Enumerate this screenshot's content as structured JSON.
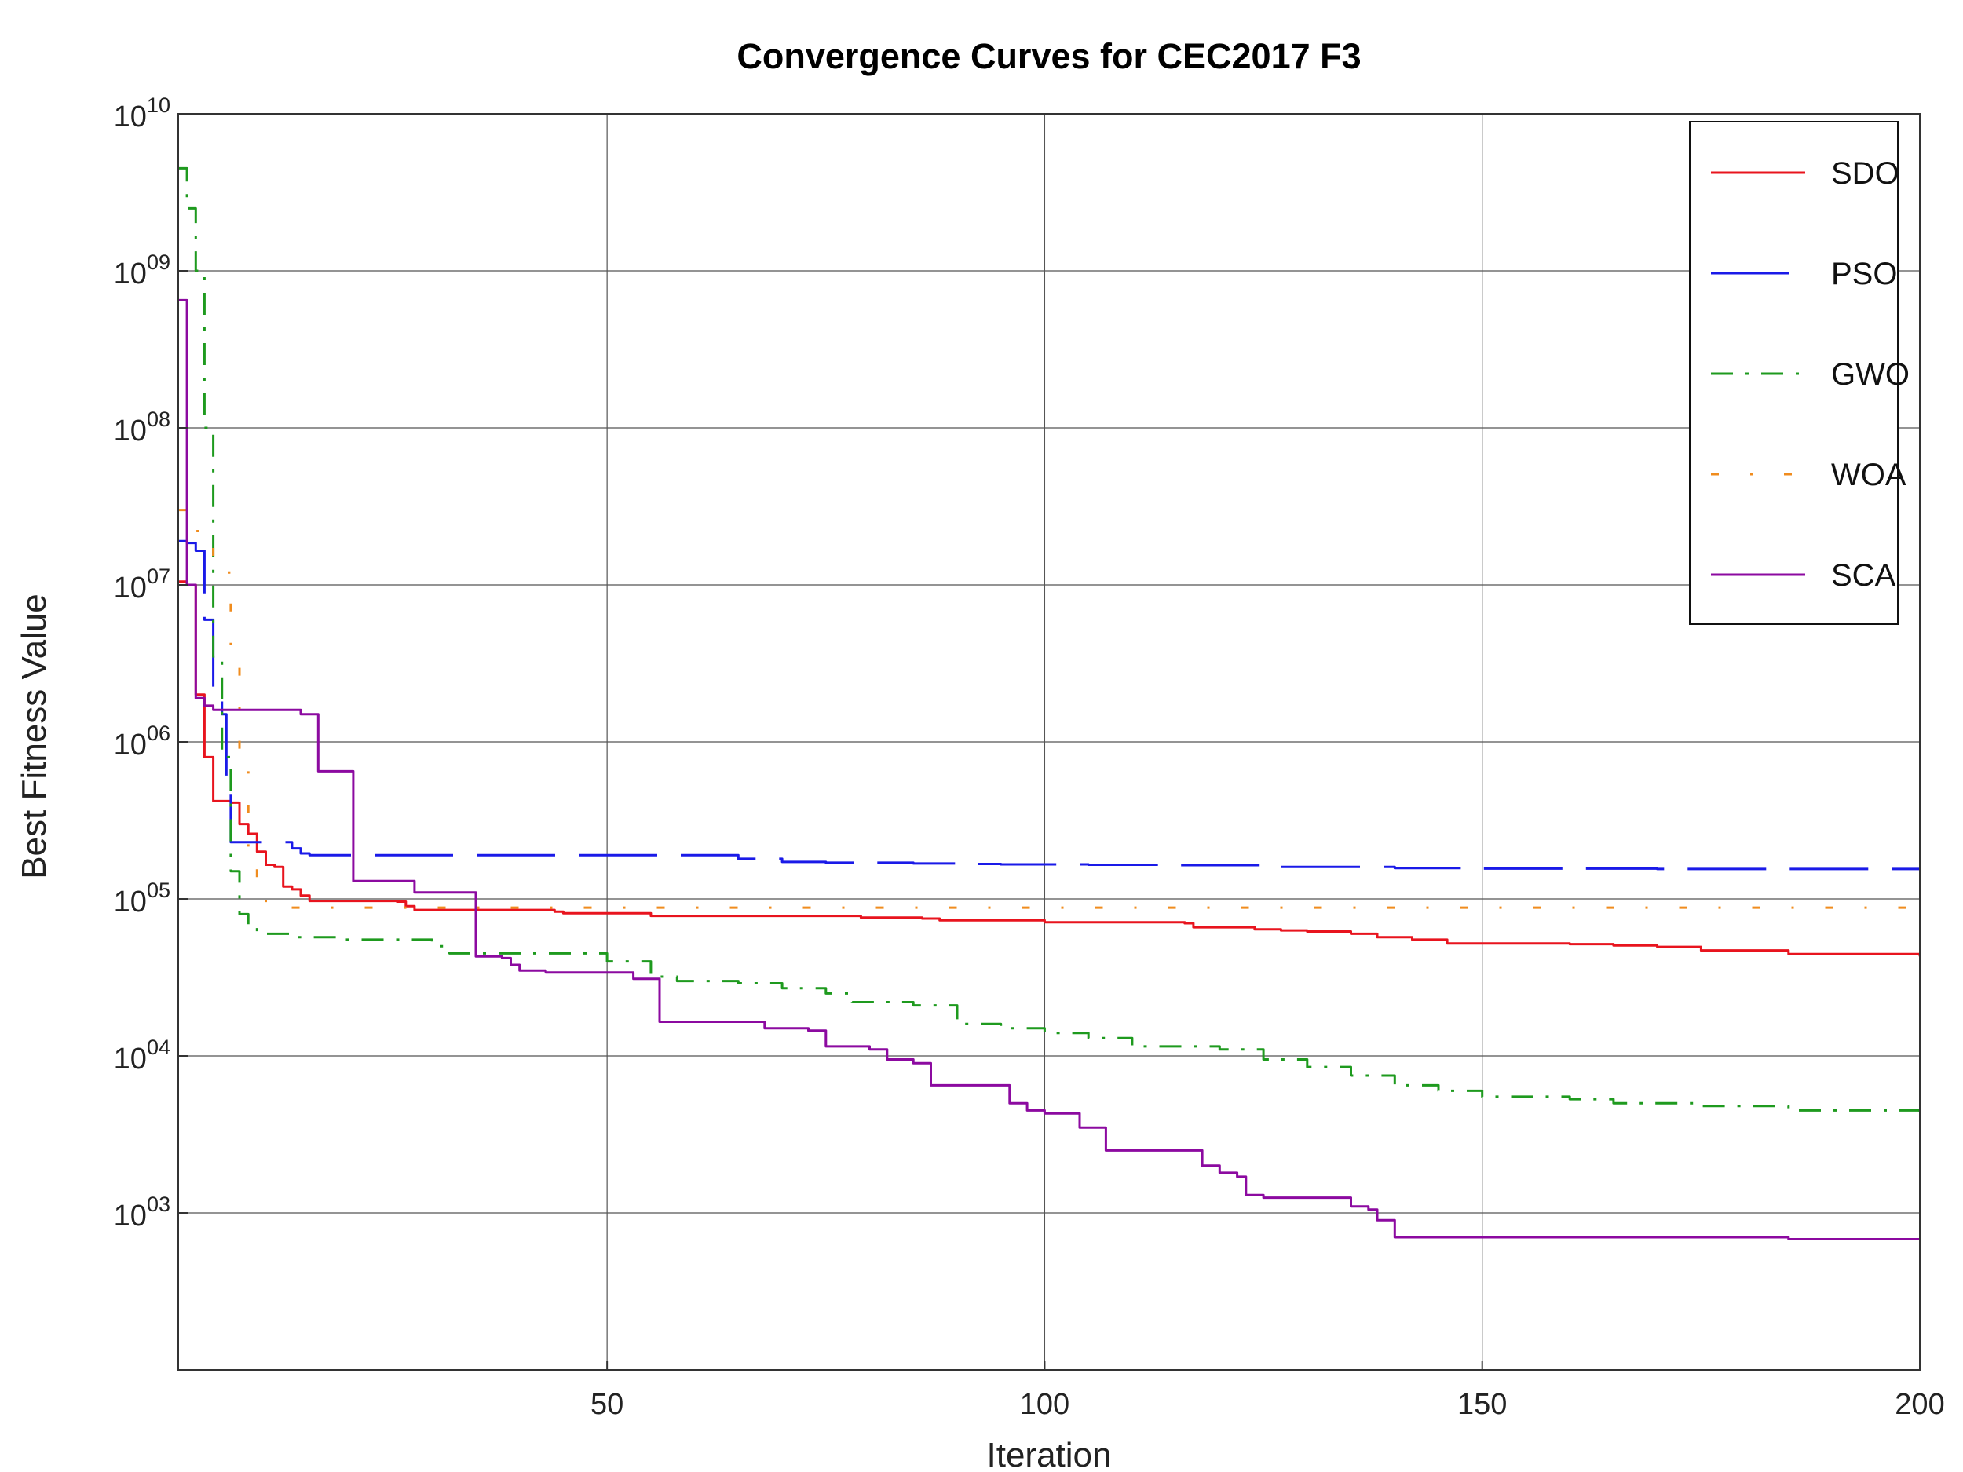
{
  "chart_data": {
    "type": "line",
    "title": "Convergence Curves for CEC2017 F3",
    "xlabel": "Iteration",
    "ylabel": "Best Fitness Value",
    "xlim": [
      1,
      200
    ],
    "ylim": [
      100,
      10000000000
    ],
    "yscale": "log",
    "grid": true,
    "legend_position": "top-right",
    "x_ticks": [
      50,
      100,
      150,
      200
    ],
    "y_ticks": [
      {
        "base": "10",
        "exp": "03",
        "value": 1000
      },
      {
        "base": "10",
        "exp": "04",
        "value": 10000
      },
      {
        "base": "10",
        "exp": "05",
        "value": 100000
      },
      {
        "base": "10",
        "exp": "06",
        "value": 1000000
      },
      {
        "base": "10",
        "exp": "07",
        "value": 10000000
      },
      {
        "base": "10",
        "exp": "08",
        "value": 100000000
      },
      {
        "base": "10",
        "exp": "09",
        "value": 1000000000
      },
      {
        "base": "10",
        "exp": "10",
        "value": 10000000000
      }
    ],
    "series": [
      {
        "name": "SDO",
        "color": "#e8141e",
        "dash": "solid",
        "points": [
          [
            1,
            10500000
          ],
          [
            2,
            10000000
          ],
          [
            3,
            2000000
          ],
          [
            4,
            800000
          ],
          [
            5,
            420000
          ],
          [
            6,
            420000
          ],
          [
            7,
            410000
          ],
          [
            8,
            300000
          ],
          [
            9,
            260000
          ],
          [
            10,
            200000
          ],
          [
            11,
            165000
          ],
          [
            12,
            160000
          ],
          [
            13,
            120000
          ],
          [
            14,
            115000
          ],
          [
            15,
            105000
          ],
          [
            16,
            97000
          ],
          [
            20,
            97000
          ],
          [
            26,
            96000
          ],
          [
            27,
            90000
          ],
          [
            28,
            85000
          ],
          [
            40,
            85000
          ],
          [
            44,
            83000
          ],
          [
            45,
            81000
          ],
          [
            55,
            78000
          ],
          [
            75,
            78000
          ],
          [
            79,
            76000
          ],
          [
            86,
            75000
          ],
          [
            88,
            73000
          ],
          [
            96,
            73000
          ],
          [
            100,
            71000
          ],
          [
            116,
            70000
          ],
          [
            117,
            66000
          ],
          [
            124,
            64000
          ],
          [
            127,
            63000
          ],
          [
            130,
            62000
          ],
          [
            135,
            60000
          ],
          [
            138,
            57000
          ],
          [
            142,
            55000
          ],
          [
            146,
            52000
          ],
          [
            160,
            51500
          ],
          [
            165,
            50500
          ],
          [
            170,
            49500
          ],
          [
            175,
            47000
          ],
          [
            185,
            44500
          ],
          [
            200,
            43000
          ]
        ]
      },
      {
        "name": "PSO",
        "color": "#1a1ae8",
        "dash": "long",
        "points": [
          [
            1,
            19000000
          ],
          [
            2,
            18500000
          ],
          [
            3,
            16500000
          ],
          [
            4,
            6000000
          ],
          [
            5,
            1900000
          ],
          [
            6,
            1500000
          ],
          [
            6.5,
            600000
          ],
          [
            7,
            230000
          ],
          [
            8,
            230000
          ],
          [
            13,
            230000
          ],
          [
            14,
            210000
          ],
          [
            15,
            195000
          ],
          [
            16,
            190000
          ],
          [
            55,
            190000
          ],
          [
            65,
            180000
          ],
          [
            70,
            172000
          ],
          [
            75,
            170000
          ],
          [
            85,
            168000
          ],
          [
            90,
            167000
          ],
          [
            95,
            166000
          ],
          [
            105,
            165000
          ],
          [
            115,
            164000
          ],
          [
            125,
            160000
          ],
          [
            140,
            157000
          ],
          [
            150,
            156000
          ],
          [
            170,
            155000
          ],
          [
            200,
            155000
          ]
        ]
      },
      {
        "name": "GWO",
        "color": "#1e9a1e",
        "dash": "dashdot",
        "points": [
          [
            1,
            4500000000
          ],
          [
            2,
            2500000000
          ],
          [
            3,
            1000000000
          ],
          [
            4,
            100000000
          ],
          [
            5,
            3500000
          ],
          [
            6,
            800000
          ],
          [
            7,
            150000
          ],
          [
            8,
            80000
          ],
          [
            9,
            68000
          ],
          [
            10,
            60000
          ],
          [
            14,
            57000
          ],
          [
            20,
            55000
          ],
          [
            30,
            50000
          ],
          [
            32,
            45000
          ],
          [
            50,
            40000
          ],
          [
            55,
            32000
          ],
          [
            58,
            30000
          ],
          [
            65,
            29000
          ],
          [
            70,
            27000
          ],
          [
            75,
            25000
          ],
          [
            78,
            22000
          ],
          [
            85,
            21000
          ],
          [
            90,
            16000
          ],
          [
            95,
            15000
          ],
          [
            100,
            14000
          ],
          [
            105,
            13000
          ],
          [
            110,
            11500
          ],
          [
            120,
            11000
          ],
          [
            125,
            9500
          ],
          [
            130,
            8500
          ],
          [
            135,
            7500
          ],
          [
            140,
            6500
          ],
          [
            145,
            6000
          ],
          [
            150,
            5500
          ],
          [
            160,
            5300
          ],
          [
            165,
            5000
          ],
          [
            175,
            4800
          ],
          [
            185,
            4500
          ],
          [
            200,
            4300
          ]
        ]
      },
      {
        "name": "WOA",
        "color": "#f08c1e",
        "dash": "dashdot-short",
        "points": [
          [
            1,
            30000000
          ],
          [
            2,
            25000000
          ],
          [
            3,
            22000000
          ],
          [
            4,
            18000000
          ],
          [
            5,
            15000000
          ],
          [
            6,
            12000000
          ],
          [
            7,
            3500000
          ],
          [
            8,
            800000
          ],
          [
            9,
            200000
          ],
          [
            10,
            120000
          ],
          [
            11,
            95000
          ],
          [
            12,
            88000
          ],
          [
            200,
            88000
          ]
        ]
      },
      {
        "name": "SCA",
        "color": "#8c0aa0",
        "dash": "solid",
        "points": [
          [
            1,
            650000000
          ],
          [
            2,
            10000000
          ],
          [
            3,
            1900000
          ],
          [
            4,
            1700000
          ],
          [
            5,
            1600000
          ],
          [
            14,
            1600000
          ],
          [
            15,
            1500000
          ],
          [
            16,
            1500000
          ],
          [
            17,
            650000
          ],
          [
            19,
            650000
          ],
          [
            20,
            650000
          ],
          [
            21,
            130000
          ],
          [
            25,
            130000
          ],
          [
            27,
            130000
          ],
          [
            28,
            110000
          ],
          [
            34,
            110000
          ],
          [
            35,
            43000
          ],
          [
            37,
            43000
          ],
          [
            38,
            42000
          ],
          [
            39,
            38000
          ],
          [
            40,
            35000
          ],
          [
            43,
            34000
          ],
          [
            51,
            34000
          ],
          [
            53,
            31000
          ],
          [
            55,
            31000
          ],
          [
            56,
            16500
          ],
          [
            66,
            16500
          ],
          [
            68,
            15000
          ],
          [
            73,
            14500
          ],
          [
            75,
            11500
          ],
          [
            80,
            11000
          ],
          [
            82,
            9500
          ],
          [
            85,
            9000
          ],
          [
            87,
            6500
          ],
          [
            95,
            6500
          ],
          [
            96,
            5000
          ],
          [
            98,
            4500
          ],
          [
            100,
            4300
          ],
          [
            103,
            4300
          ],
          [
            104,
            3500
          ],
          [
            106,
            3500
          ],
          [
            107,
            2500
          ],
          [
            117,
            2500
          ],
          [
            118,
            2000
          ],
          [
            120,
            1800
          ],
          [
            122,
            1700
          ],
          [
            123,
            1300
          ],
          [
            125,
            1250
          ],
          [
            134,
            1250
          ],
          [
            135,
            1100
          ],
          [
            137,
            1050
          ],
          [
            138,
            900
          ],
          [
            140,
            700
          ],
          [
            155,
            700
          ],
          [
            175,
            700
          ],
          [
            185,
            680
          ],
          [
            200,
            680
          ]
        ]
      }
    ]
  }
}
